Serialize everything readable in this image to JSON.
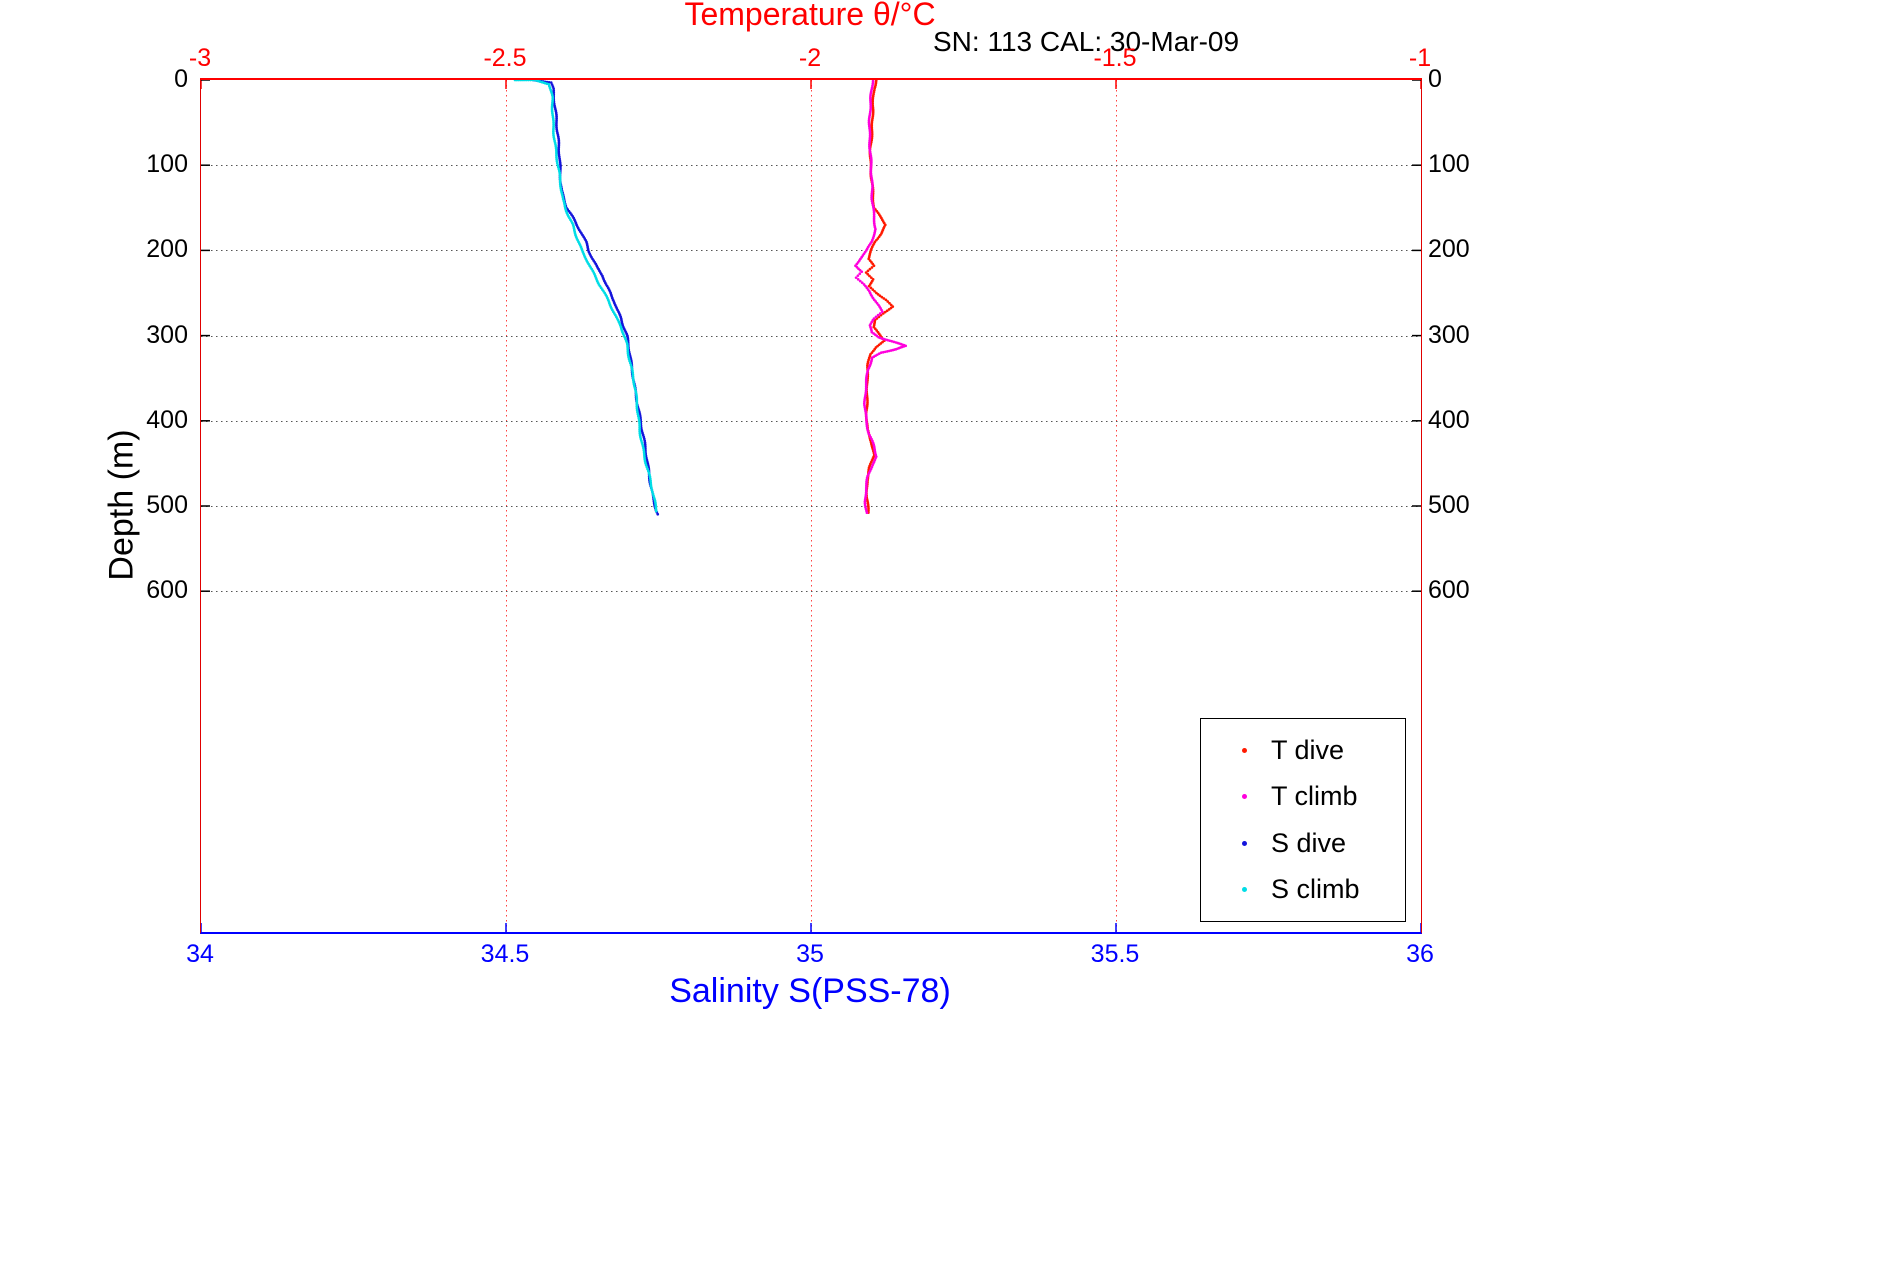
{
  "chart_data": {
    "type": "scatter",
    "title": "Temperature θ/°C",
    "subtitle": "SN: 113  CAL: 30-Mar-09",
    "x_top": {
      "label": "Temperature θ/°C",
      "color": "#ff0000",
      "range": [
        -3,
        -1
      ],
      "ticks": [
        -3,
        -2.5,
        -2,
        -1.5,
        -1
      ]
    },
    "x_bottom": {
      "label": "Salinity S(PSS-78)",
      "color": "#0000ff",
      "range": [
        34,
        36
      ],
      "ticks": [
        34,
        34.5,
        35,
        35.5,
        36
      ]
    },
    "y": {
      "label": "Depth (m)",
      "color": "#000000",
      "range": [
        0,
        1000
      ],
      "inverted": true,
      "ticks": [
        0,
        100,
        200,
        300,
        400,
        500,
        600
      ]
    },
    "grid": {
      "vertical_at_temp": [
        -2.5,
        -2,
        -1.5
      ],
      "horizontal_at_depth": [
        100,
        200,
        300,
        400,
        500,
        600
      ],
      "vertical_color": "#ff4040",
      "horizontal_color": "#555555"
    },
    "legend": {
      "position": "bottom-right",
      "items": [
        "T dive",
        "T climb",
        "S dive",
        "S climb"
      ]
    },
    "series": [
      {
        "name": "T dive",
        "axis": "x_top",
        "color": "#ff1a00",
        "points": [
          [
            0,
            -1.893
          ],
          [
            10,
            -1.897
          ],
          [
            30,
            -1.9
          ],
          [
            60,
            -1.9
          ],
          [
            90,
            -1.902
          ],
          [
            120,
            -1.9
          ],
          [
            150,
            -1.898
          ],
          [
            160,
            -1.888
          ],
          [
            170,
            -1.878
          ],
          [
            180,
            -1.885
          ],
          [
            190,
            -1.895
          ],
          [
            200,
            -1.9
          ],
          [
            210,
            -1.905
          ],
          [
            218,
            -1.896
          ],
          [
            226,
            -1.908
          ],
          [
            234,
            -1.898
          ],
          [
            242,
            -1.906
          ],
          [
            250,
            -1.893
          ],
          [
            258,
            -1.878
          ],
          [
            266,
            -1.868
          ],
          [
            274,
            -1.882
          ],
          [
            282,
            -1.895
          ],
          [
            290,
            -1.898
          ],
          [
            298,
            -1.888
          ],
          [
            306,
            -1.878
          ],
          [
            314,
            -1.893
          ],
          [
            322,
            -1.902
          ],
          [
            335,
            -1.906
          ],
          [
            350,
            -1.908
          ],
          [
            370,
            -1.909
          ],
          [
            390,
            -1.91
          ],
          [
            410,
            -1.908
          ],
          [
            425,
            -1.9
          ],
          [
            440,
            -1.896
          ],
          [
            455,
            -1.903
          ],
          [
            470,
            -1.908
          ],
          [
            490,
            -1.909
          ],
          [
            510,
            -1.907
          ]
        ]
      },
      {
        "name": "T climb",
        "axis": "x_top",
        "color": "#ff00dd",
        "points": [
          [
            0,
            -1.9
          ],
          [
            20,
            -1.902
          ],
          [
            50,
            -1.903
          ],
          [
            80,
            -1.903
          ],
          [
            110,
            -1.902
          ],
          [
            140,
            -1.9
          ],
          [
            160,
            -1.896
          ],
          [
            175,
            -1.893
          ],
          [
            190,
            -1.9
          ],
          [
            200,
            -1.908
          ],
          [
            210,
            -1.92
          ],
          [
            218,
            -1.928
          ],
          [
            225,
            -1.917
          ],
          [
            232,
            -1.927
          ],
          [
            240,
            -1.915
          ],
          [
            248,
            -1.905
          ],
          [
            256,
            -1.898
          ],
          [
            264,
            -1.89
          ],
          [
            272,
            -1.883
          ],
          [
            280,
            -1.895
          ],
          [
            288,
            -1.902
          ],
          [
            296,
            -1.9
          ],
          [
            302,
            -1.888
          ],
          [
            308,
            -1.862
          ],
          [
            312,
            -1.845
          ],
          [
            316,
            -1.862
          ],
          [
            320,
            -1.885
          ],
          [
            326,
            -1.9
          ],
          [
            340,
            -1.906
          ],
          [
            360,
            -1.909
          ],
          [
            380,
            -1.911
          ],
          [
            400,
            -1.91
          ],
          [
            415,
            -1.906
          ],
          [
            430,
            -1.898
          ],
          [
            442,
            -1.893
          ],
          [
            452,
            -1.9
          ],
          [
            465,
            -1.906
          ],
          [
            480,
            -1.909
          ],
          [
            495,
            -1.91
          ],
          [
            510,
            -1.908
          ]
        ]
      },
      {
        "name": "S dive",
        "axis": "x_bottom",
        "color": "#1414dc",
        "points": [
          [
            0,
            34.545
          ],
          [
            3,
            34.575
          ],
          [
            10,
            34.578
          ],
          [
            30,
            34.58
          ],
          [
            60,
            34.583
          ],
          [
            90,
            34.588
          ],
          [
            110,
            34.59
          ],
          [
            130,
            34.592
          ],
          [
            150,
            34.6
          ],
          [
            160,
            34.608
          ],
          [
            170,
            34.615
          ],
          [
            180,
            34.623
          ],
          [
            190,
            34.63
          ],
          [
            200,
            34.635
          ],
          [
            210,
            34.642
          ],
          [
            220,
            34.65
          ],
          [
            230,
            34.66
          ],
          [
            240,
            34.665
          ],
          [
            250,
            34.672
          ],
          [
            260,
            34.678
          ],
          [
            270,
            34.682
          ],
          [
            280,
            34.688
          ],
          [
            290,
            34.692
          ],
          [
            300,
            34.697
          ],
          [
            310,
            34.7
          ],
          [
            330,
            34.705
          ],
          [
            350,
            34.71
          ],
          [
            370,
            34.714
          ],
          [
            390,
            34.718
          ],
          [
            410,
            34.722
          ],
          [
            430,
            34.727
          ],
          [
            450,
            34.732
          ],
          [
            470,
            34.737
          ],
          [
            490,
            34.742
          ],
          [
            505,
            34.747
          ],
          [
            512,
            34.75
          ]
        ]
      },
      {
        "name": "S climb",
        "axis": "x_bottom",
        "color": "#00dde6",
        "points": [
          [
            0,
            34.515
          ],
          [
            0,
            34.545
          ],
          [
            5,
            34.57
          ],
          [
            20,
            34.575
          ],
          [
            50,
            34.578
          ],
          [
            80,
            34.582
          ],
          [
            100,
            34.585
          ],
          [
            120,
            34.588
          ],
          [
            140,
            34.592
          ],
          [
            150,
            34.597
          ],
          [
            160,
            34.603
          ],
          [
            170,
            34.61
          ],
          [
            180,
            34.615
          ],
          [
            190,
            34.62
          ],
          [
            200,
            34.625
          ],
          [
            210,
            34.632
          ],
          [
            220,
            34.638
          ],
          [
            230,
            34.645
          ],
          [
            240,
            34.652
          ],
          [
            250,
            34.66
          ],
          [
            260,
            34.668
          ],
          [
            270,
            34.675
          ],
          [
            280,
            34.682
          ],
          [
            290,
            34.69
          ],
          [
            300,
            34.695
          ],
          [
            310,
            34.699
          ],
          [
            330,
            34.703
          ],
          [
            350,
            34.708
          ],
          [
            370,
            34.712
          ],
          [
            390,
            34.716
          ],
          [
            410,
            34.72
          ],
          [
            430,
            34.725
          ],
          [
            450,
            34.73
          ],
          [
            470,
            34.736
          ],
          [
            490,
            34.741
          ],
          [
            508,
            34.747
          ]
        ]
      }
    ]
  }
}
